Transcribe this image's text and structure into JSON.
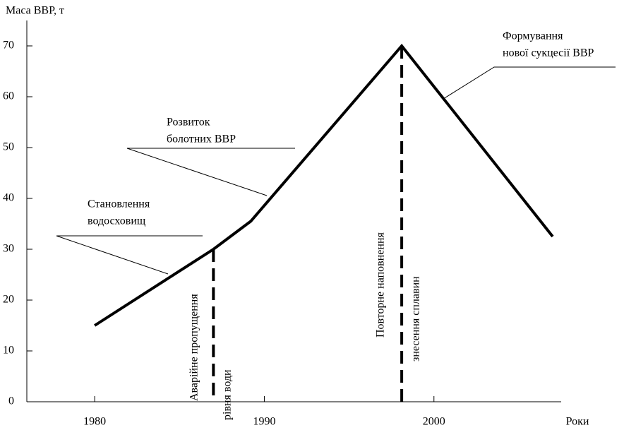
{
  "chart_data": {
    "type": "line",
    "y_label": "Маса ВВР, т",
    "x_label": "Роки",
    "x": [
      1980,
      1987,
      1989.2,
      1998.1,
      2007
    ],
    "series": [
      {
        "values": [
          15,
          30,
          35.5,
          70,
          32.5
        ],
        "color": "#000000"
      }
    ],
    "vlines": [
      {
        "x": 1987,
        "value": 30
      },
      {
        "x": 1998.1,
        "value": 70
      }
    ],
    "xlim": [
      1976,
      2007.5
    ],
    "ylim": [
      0,
      75
    ],
    "xticks": [
      1980,
      1990,
      2000
    ],
    "yticks": [
      0,
      10,
      20,
      30,
      40,
      50,
      60,
      70
    ],
    "annotations": [
      "Становлення",
      "водосховищ",
      "Розвиток",
      "болотних ВВР",
      "Формування",
      "нової сукцесії ВВР",
      "Аварійне пропущення",
      "рівня води",
      "Повторне наповнення",
      "знесення сплавин"
    ]
  }
}
